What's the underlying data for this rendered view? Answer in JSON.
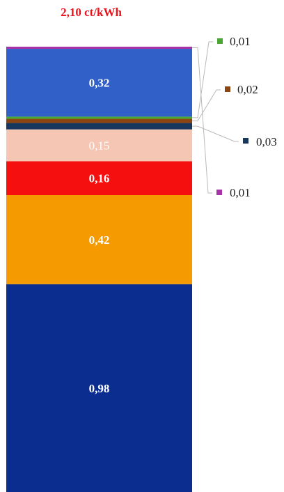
{
  "chart_data": {
    "type": "bar",
    "stacked": true,
    "orientation": "vertical",
    "title": "2,10 ct/kWh",
    "title_color": "#e8141c",
    "unit": "ct/kWh",
    "categories": [
      ""
    ],
    "series": [
      {
        "label": "0,98",
        "value": 0.98,
        "color": "#0a2d8f",
        "label_color": "#ffffff",
        "label_position": "inside"
      },
      {
        "label": "0,42",
        "value": 0.42,
        "color": "#f59a00",
        "label_color": "#ffffff",
        "label_position": "inside"
      },
      {
        "label": "0,16",
        "value": 0.16,
        "color": "#f60f0f",
        "label_color": "#ffffff",
        "label_position": "inside"
      },
      {
        "label": "0,15",
        "value": 0.15,
        "color": "#f4c6b3",
        "label_color": "#ffffff",
        "label_position": "inside"
      },
      {
        "label": "0,03",
        "value": 0.03,
        "color": "#17375e",
        "label_color": "#222222",
        "label_position": "callout"
      },
      {
        "label": "0,02",
        "value": 0.02,
        "color": "#8b4513",
        "label_color": "#222222",
        "label_position": "callout"
      },
      {
        "label": "0,01",
        "value": 0.01,
        "color": "#4aa832",
        "label_color": "#222222",
        "label_position": "callout"
      },
      {
        "label": "0,32",
        "value": 0.32,
        "color": "#3060c8",
        "label_color": "#ffffff",
        "label_position": "inside"
      },
      {
        "label": "0,01",
        "value": 0.01,
        "color": "#a832a8",
        "label_color": "#222222",
        "label_position": "callout"
      }
    ],
    "callout_order": [
      6,
      5,
      4,
      8
    ],
    "grid": false,
    "legend": "none"
  }
}
